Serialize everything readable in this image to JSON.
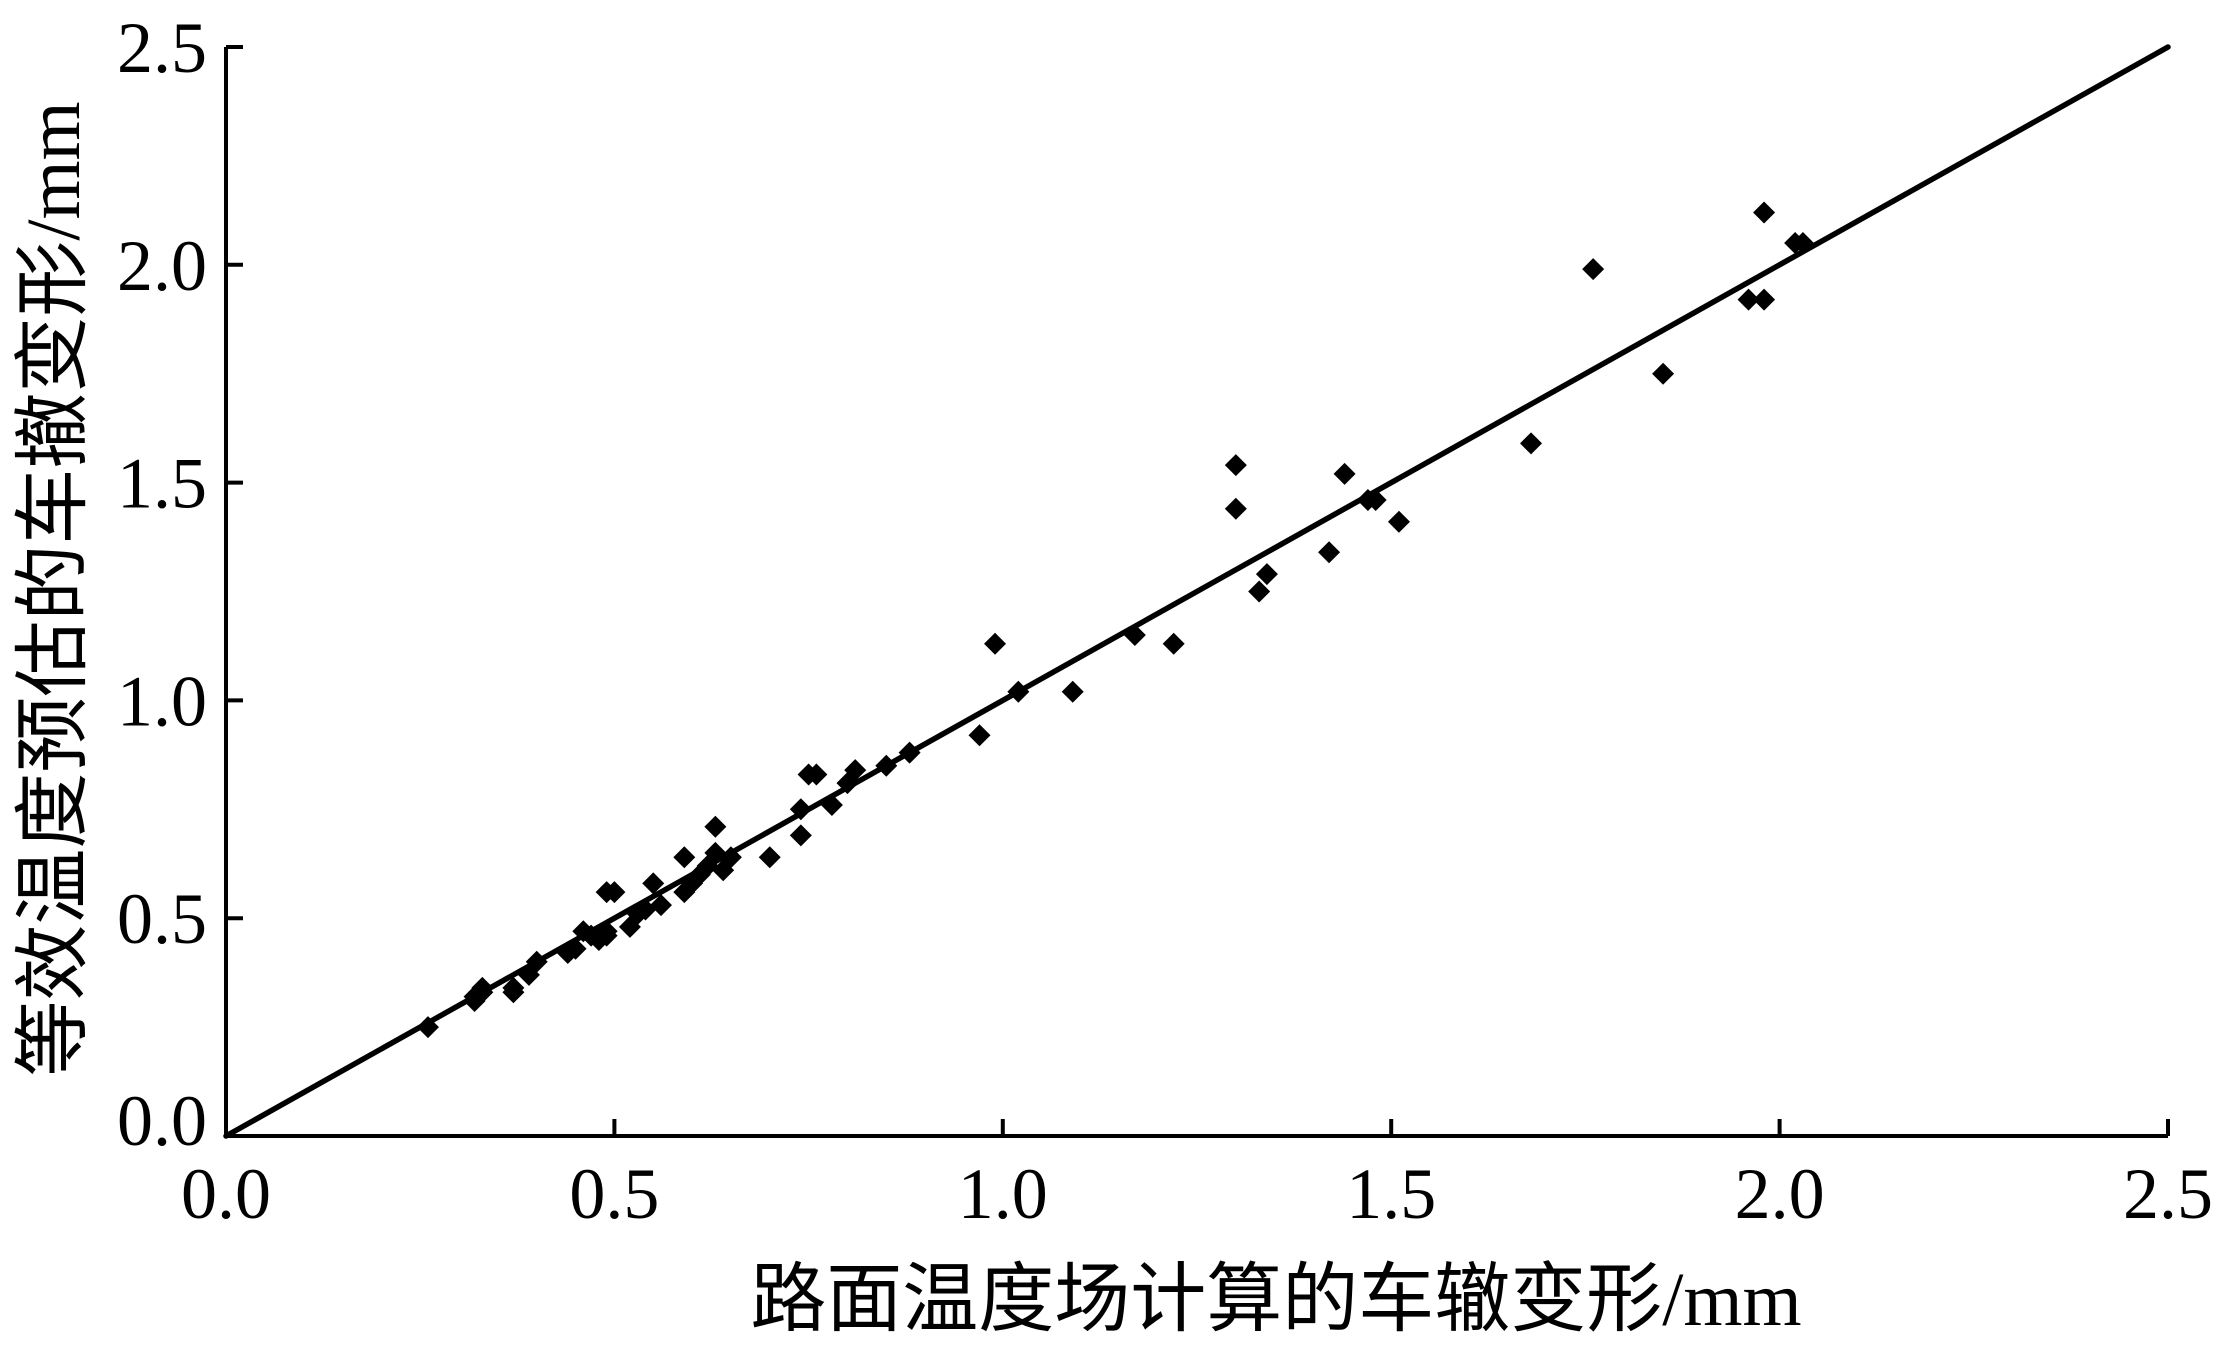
{
  "chart_data": {
    "type": "scatter",
    "xlabel": "路面温度场计算的车辙变形/mm",
    "ylabel": "等效温度预估的车撤变形/mm",
    "xlim": [
      0,
      2.5
    ],
    "ylim": [
      0,
      2.5
    ],
    "x_ticks": [
      "0.0",
      "0.5",
      "1.0",
      "1.5",
      "2.0",
      "2.5"
    ],
    "y_ticks": [
      "0.0",
      "0.5",
      "1.0",
      "1.5",
      "2.0",
      "2.5"
    ],
    "grid": false,
    "series": [
      {
        "color": "#000000",
        "x": [
          0.26,
          0.32,
          0.33,
          0.32,
          0.33,
          0.37,
          0.37,
          0.39,
          0.4,
          0.44,
          0.45,
          0.46,
          0.47,
          0.48,
          0.49,
          0.49,
          0.49,
          0.5,
          0.52,
          0.53,
          0.54,
          0.55,
          0.56,
          0.59,
          0.59,
          0.6,
          0.61,
          0.62,
          0.63,
          0.63,
          0.64,
          0.65,
          0.7,
          0.74,
          0.74,
          0.75,
          0.76,
          0.78,
          0.8,
          0.81,
          0.85,
          0.88,
          0.97,
          0.99,
          1.02,
          1.09,
          1.17,
          1.22,
          1.3,
          1.3,
          1.33,
          1.34,
          1.42,
          1.44,
          1.47,
          1.48,
          1.51,
          1.68,
          1.76,
          1.85,
          1.96,
          1.98,
          1.98,
          2.02,
          2.03
        ],
        "y": [
          0.25,
          0.32,
          0.33,
          0.31,
          0.34,
          0.34,
          0.33,
          0.37,
          0.4,
          0.42,
          0.43,
          0.47,
          0.46,
          0.45,
          0.46,
          0.47,
          0.56,
          0.56,
          0.48,
          0.51,
          0.52,
          0.58,
          0.53,
          0.64,
          0.56,
          0.58,
          0.6,
          0.62,
          0.65,
          0.71,
          0.61,
          0.64,
          0.64,
          0.69,
          0.75,
          0.83,
          0.83,
          0.76,
          0.81,
          0.84,
          0.85,
          0.88,
          0.92,
          1.13,
          1.02,
          1.02,
          1.15,
          1.13,
          1.54,
          1.44,
          1.25,
          1.29,
          1.34,
          1.52,
          1.46,
          1.46,
          1.41,
          1.59,
          1.99,
          1.75,
          1.92,
          2.12,
          1.92,
          2.05,
          2.05
        ]
      }
    ],
    "line": {
      "color": "#000000",
      "x": [
        0,
        2.5
      ],
      "y": [
        0,
        2.5
      ]
    }
  }
}
